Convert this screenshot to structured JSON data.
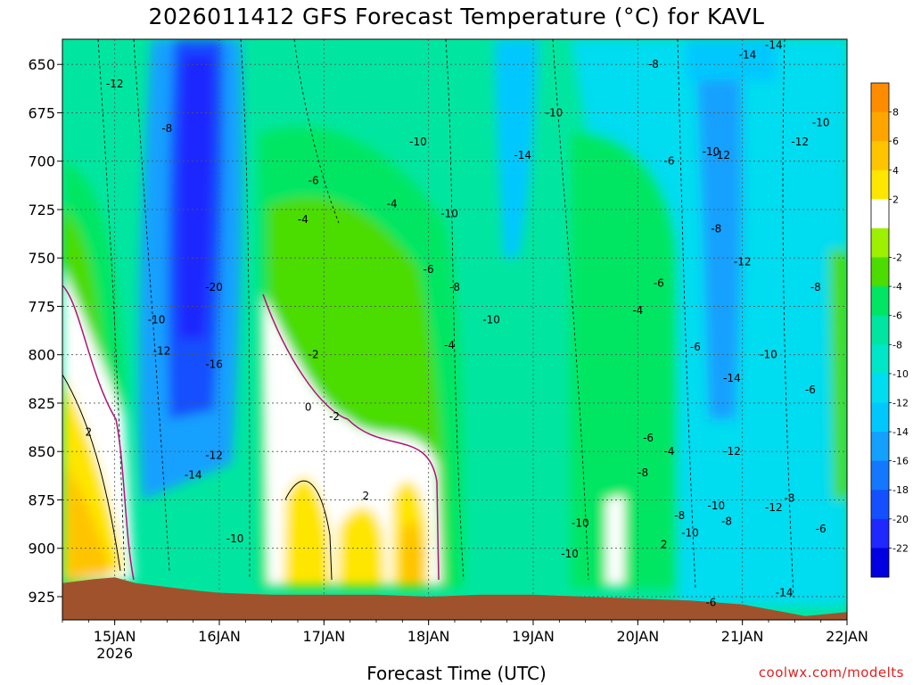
{
  "chart_data": {
    "type": "heatmap",
    "title": "2026011412  GFS Forecast Temperature (°C) for KAVL",
    "xlabel": "Forecast Time (UTC)",
    "ylabel": "",
    "credit": "coolwx.com/modelts",
    "y_axis": {
      "ticks": [
        650,
        675,
        700,
        725,
        750,
        775,
        800,
        825,
        850,
        875,
        900,
        925
      ],
      "range": [
        937,
        637
      ],
      "reversed": true,
      "unit": "hPa"
    },
    "x_axis": {
      "ticks": [
        "15JAN",
        "16JAN",
        "17JAN",
        "18JAN",
        "19JAN",
        "20JAN",
        "21JAN",
        "22JAN"
      ],
      "first_tick_sublabel": "2026",
      "range": [
        "2026-01-14T12",
        "2026-01-22T00"
      ]
    },
    "grid": true,
    "colorbar": {
      "levels": [
        10,
        8,
        6,
        4,
        2,
        0,
        -2,
        -4,
        -6,
        -8,
        -10,
        -12,
        -14,
        -16,
        -18,
        -20,
        -22,
        -24
      ],
      "labels": [
        "8",
        "6",
        "4",
        "2",
        "-2",
        "-4",
        "-6",
        "-8",
        "-10",
        "-12",
        "-14",
        "-16",
        "-18",
        "-20",
        "-22"
      ],
      "colors": [
        "#ff8c00",
        "#ffa500",
        "#ffc400",
        "#ffe600",
        "#ffffff",
        "#9cf000",
        "#4cdc00",
        "#00e664",
        "#00e6a0",
        "#00e6c8",
        "#00dcf0",
        "#00c8ff",
        "#14a0ff",
        "#1478ff",
        "#1450ff",
        "#1e28ff",
        "#0000e0"
      ]
    },
    "surface_color": "#a0522d",
    "contour_labels": [
      {
        "x": 15.0,
        "p": 660,
        "t": "-12"
      },
      {
        "x": 15.5,
        "p": 683,
        "t": "-8"
      },
      {
        "x": 15.4,
        "p": 782,
        "t": "-10"
      },
      {
        "x": 15.45,
        "p": 798,
        "t": "-12"
      },
      {
        "x": 15.95,
        "p": 805,
        "t": "-16"
      },
      {
        "x": 15.95,
        "p": 765,
        "t": "-20"
      },
      {
        "x": 15.95,
        "p": 852,
        "t": "-12"
      },
      {
        "x": 15.75,
        "p": 862,
        "t": "-14"
      },
      {
        "x": 16.15,
        "p": 895,
        "t": "-10"
      },
      {
        "x": 14.75,
        "p": 840,
        "t": "2"
      },
      {
        "x": 16.9,
        "p": 710,
        "t": "-6"
      },
      {
        "x": 16.8,
        "p": 730,
        "t": "-4"
      },
      {
        "x": 16.9,
        "p": 800,
        "t": "-2"
      },
      {
        "x": 16.85,
        "p": 827,
        "t": "0"
      },
      {
        "x": 17.1,
        "p": 832,
        "t": "-2"
      },
      {
        "x": 17.4,
        "p": 873,
        "t": "2"
      },
      {
        "x": 17.65,
        "p": 722,
        "t": "-4"
      },
      {
        "x": 17.9,
        "p": 690,
        "t": "-10"
      },
      {
        "x": 18.2,
        "p": 727,
        "t": "-10"
      },
      {
        "x": 18.0,
        "p": 756,
        "t": "-6"
      },
      {
        "x": 18.25,
        "p": 765,
        "t": "-8"
      },
      {
        "x": 18.2,
        "p": 795,
        "t": "-4"
      },
      {
        "x": 18.6,
        "p": 782,
        "t": "-10"
      },
      {
        "x": 18.9,
        "p": 697,
        "t": "-14"
      },
      {
        "x": 19.2,
        "p": 675,
        "t": "-10"
      },
      {
        "x": 20.15,
        "p": 650,
        "t": "-8"
      },
      {
        "x": 20.3,
        "p": 700,
        "t": "-6"
      },
      {
        "x": 20.2,
        "p": 763,
        "t": "-6"
      },
      {
        "x": 20.0,
        "p": 777,
        "t": "-4"
      },
      {
        "x": 19.45,
        "p": 887,
        "t": "-10"
      },
      {
        "x": 19.35,
        "p": 903,
        "t": "-10"
      },
      {
        "x": 20.1,
        "p": 843,
        "t": "-6"
      },
      {
        "x": 20.3,
        "p": 850,
        "t": "-4"
      },
      {
        "x": 20.05,
        "p": 861,
        "t": "-8"
      },
      {
        "x": 20.25,
        "p": 898,
        "t": "2"
      },
      {
        "x": 20.7,
        "p": 695,
        "t": "-10"
      },
      {
        "x": 20.8,
        "p": 697,
        "t": "-12"
      },
      {
        "x": 20.75,
        "p": 735,
        "t": "-8"
      },
      {
        "x": 20.55,
        "p": 796,
        "t": "-6"
      },
      {
        "x": 20.4,
        "p": 883,
        "t": "-8"
      },
      {
        "x": 20.5,
        "p": 892,
        "t": "-10"
      },
      {
        "x": 20.75,
        "p": 878,
        "t": "-10"
      },
      {
        "x": 20.85,
        "p": 886,
        "t": "-8"
      },
      {
        "x": 20.7,
        "p": 928,
        "t": "-6"
      },
      {
        "x": 21.3,
        "p": 640,
        "t": "-14"
      },
      {
        "x": 21.05,
        "p": 645,
        "t": "-14"
      },
      {
        "x": 21.0,
        "p": 752,
        "t": "-12"
      },
      {
        "x": 21.25,
        "p": 800,
        "t": "-10"
      },
      {
        "x": 20.9,
        "p": 812,
        "t": "-14"
      },
      {
        "x": 20.9,
        "p": 850,
        "t": "-12"
      },
      {
        "x": 21.3,
        "p": 879,
        "t": "-12"
      },
      {
        "x": 21.45,
        "p": 874,
        "t": "-8"
      },
      {
        "x": 21.55,
        "p": 690,
        "t": "-12"
      },
      {
        "x": 21.75,
        "p": 680,
        "t": "-10"
      },
      {
        "x": 21.7,
        "p": 765,
        "t": "-8"
      },
      {
        "x": 21.65,
        "p": 818,
        "t": "-6"
      },
      {
        "x": 21.75,
        "p": 890,
        "t": "-6"
      },
      {
        "x": 21.4,
        "p": 923,
        "t": "-14"
      }
    ]
  }
}
